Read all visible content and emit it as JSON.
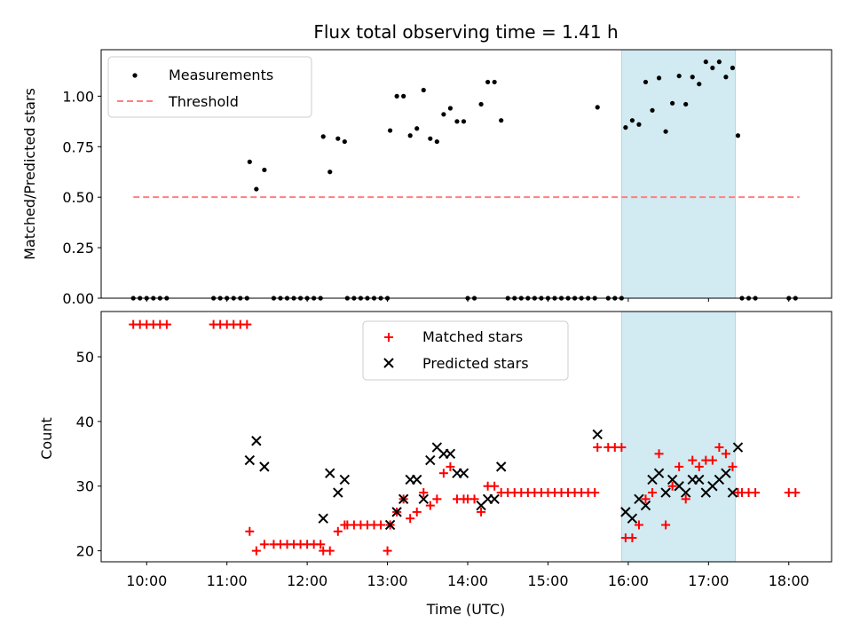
{
  "chart_data": [
    {
      "type": "scatter",
      "title": "Flux total observing time = 1.41 h",
      "xlabel": "",
      "ylabel": "Matched/Predicted stars",
      "ylim": [
        0,
        1.23
      ],
      "yticks": [
        "0.00",
        "0.25",
        "0.50",
        "0.75",
        "1.00"
      ],
      "legend": {
        "placement": "top-left",
        "entries": [
          "Measurements",
          "Threshold"
        ]
      },
      "highlight_span": {
        "start": "15:55",
        "end": "17:20",
        "color": "#add8e6"
      },
      "threshold": {
        "name": "Threshold",
        "value": 0.5,
        "x_start": "09:50",
        "x_end": "18:08",
        "color": "#ff7f7f"
      },
      "series": [
        {
          "name": "Measurements",
          "points": [
            [
              "09:50",
              0
            ],
            [
              "09:55",
              0
            ],
            [
              "10:00",
              0
            ],
            [
              "10:05",
              0
            ],
            [
              "10:10",
              0
            ],
            [
              "10:15",
              0
            ],
            [
              "10:50",
              0
            ],
            [
              "10:55",
              0
            ],
            [
              "11:00",
              0
            ],
            [
              "11:05",
              0
            ],
            [
              "11:10",
              0
            ],
            [
              "11:15",
              0
            ],
            [
              "11:17",
              0.675
            ],
            [
              "11:22",
              0.54
            ],
            [
              "11:28",
              0.635
            ],
            [
              "11:35",
              0
            ],
            [
              "11:40",
              0
            ],
            [
              "11:45",
              0
            ],
            [
              "11:50",
              0
            ],
            [
              "11:55",
              0
            ],
            [
              "12:00",
              0
            ],
            [
              "12:05",
              0
            ],
            [
              "12:10",
              0
            ],
            [
              "12:12",
              0.8
            ],
            [
              "12:17",
              0.625
            ],
            [
              "12:23",
              0.79
            ],
            [
              "12:28",
              0.775
            ],
            [
              "12:30",
              0
            ],
            [
              "12:35",
              0
            ],
            [
              "12:40",
              0
            ],
            [
              "12:45",
              0
            ],
            [
              "12:50",
              0
            ],
            [
              "12:55",
              0
            ],
            [
              "13:00",
              0
            ],
            [
              "13:02",
              0.83
            ],
            [
              "13:07",
              1.0
            ],
            [
              "13:12",
              1.0
            ],
            [
              "13:17",
              0.805
            ],
            [
              "13:22",
              0.84
            ],
            [
              "13:27",
              1.03
            ],
            [
              "13:32",
              0.79
            ],
            [
              "13:37",
              0.775
            ],
            [
              "13:42",
              0.91
            ],
            [
              "13:47",
              0.94
            ],
            [
              "13:52",
              0.875
            ],
            [
              "13:57",
              0.875
            ],
            [
              "14:00",
              0
            ],
            [
              "14:05",
              0
            ],
            [
              "14:10",
              0.96
            ],
            [
              "14:15",
              1.07
            ],
            [
              "14:20",
              1.07
            ],
            [
              "14:25",
              0.88
            ],
            [
              "14:30",
              0
            ],
            [
              "14:35",
              0
            ],
            [
              "14:40",
              0
            ],
            [
              "14:45",
              0
            ],
            [
              "14:50",
              0
            ],
            [
              "14:55",
              0
            ],
            [
              "15:00",
              0
            ],
            [
              "15:05",
              0
            ],
            [
              "15:10",
              0
            ],
            [
              "15:15",
              0
            ],
            [
              "15:20",
              0
            ],
            [
              "15:25",
              0
            ],
            [
              "15:30",
              0
            ],
            [
              "15:35",
              0
            ],
            [
              "15:37",
              0.945
            ],
            [
              "15:45",
              0
            ],
            [
              "15:50",
              0
            ],
            [
              "15:55",
              0
            ],
            [
              "15:58",
              0.845
            ],
            [
              "16:03",
              0.88
            ],
            [
              "16:08",
              0.86
            ],
            [
              "16:13",
              1.07
            ],
            [
              "16:18",
              0.93
            ],
            [
              "16:23",
              1.09
            ],
            [
              "16:28",
              0.825
            ],
            [
              "16:33",
              0.965
            ],
            [
              "16:38",
              1.1
            ],
            [
              "16:43",
              0.96
            ],
            [
              "16:48",
              1.095
            ],
            [
              "16:53",
              1.06
            ],
            [
              "16:58",
              1.17
            ],
            [
              "17:03",
              1.14
            ],
            [
              "17:08",
              1.17
            ],
            [
              "17:13",
              1.095
            ],
            [
              "17:18",
              1.14
            ],
            [
              "17:22",
              0.805
            ],
            [
              "17:25",
              0
            ],
            [
              "17:30",
              0
            ],
            [
              "17:35",
              0
            ],
            [
              "18:00",
              0
            ],
            [
              "18:05",
              0
            ]
          ]
        }
      ]
    },
    {
      "type": "scatter",
      "title": "",
      "xlabel": "Time (UTC)",
      "ylabel": "Count",
      "ylim": [
        18.3,
        57
      ],
      "yticks": [
        "20",
        "30",
        "40",
        "50"
      ],
      "xticks": [
        "10:00",
        "11:00",
        "12:00",
        "13:00",
        "14:00",
        "15:00",
        "16:00",
        "17:00",
        "18:00"
      ],
      "xlim": [
        "09:26",
        "18:32"
      ],
      "legend": {
        "placement": "top-center",
        "entries": [
          "Matched stars",
          "Predicted stars"
        ]
      },
      "highlight_span": {
        "start": "15:55",
        "end": "17:20",
        "color": "#add8e6"
      },
      "series": [
        {
          "name": "Matched stars",
          "marker": "plus",
          "color": "#ff0000",
          "points": [
            [
              "09:50",
              55
            ],
            [
              "09:55",
              55
            ],
            [
              "10:00",
              55
            ],
            [
              "10:05",
              55
            ],
            [
              "10:10",
              55
            ],
            [
              "10:15",
              55
            ],
            [
              "10:50",
              55
            ],
            [
              "10:55",
              55
            ],
            [
              "11:00",
              55
            ],
            [
              "11:05",
              55
            ],
            [
              "11:10",
              55
            ],
            [
              "11:15",
              55
            ],
            [
              "11:17",
              23
            ],
            [
              "11:22",
              20
            ],
            [
              "11:28",
              21
            ],
            [
              "11:35",
              21
            ],
            [
              "11:40",
              21
            ],
            [
              "11:45",
              21
            ],
            [
              "11:50",
              21
            ],
            [
              "11:55",
              21
            ],
            [
              "12:00",
              21
            ],
            [
              "12:05",
              21
            ],
            [
              "12:10",
              21
            ],
            [
              "12:12",
              20
            ],
            [
              "12:17",
              20
            ],
            [
              "12:23",
              23
            ],
            [
              "12:28",
              24
            ],
            [
              "12:30",
              24
            ],
            [
              "12:35",
              24
            ],
            [
              "12:40",
              24
            ],
            [
              "12:45",
              24
            ],
            [
              "12:50",
              24
            ],
            [
              "12:55",
              24
            ],
            [
              "13:00",
              20
            ],
            [
              "13:02",
              24
            ],
            [
              "13:07",
              26
            ],
            [
              "13:12",
              28
            ],
            [
              "13:17",
              25
            ],
            [
              "13:22",
              26
            ],
            [
              "13:27",
              29
            ],
            [
              "13:32",
              27
            ],
            [
              "13:37",
              28
            ],
            [
              "13:42",
              32
            ],
            [
              "13:47",
              33
            ],
            [
              "13:52",
              28
            ],
            [
              "13:57",
              28
            ],
            [
              "14:00",
              28
            ],
            [
              "14:05",
              28
            ],
            [
              "14:10",
              26
            ],
            [
              "14:15",
              30
            ],
            [
              "14:20",
              30
            ],
            [
              "14:25",
              29
            ],
            [
              "14:30",
              29
            ],
            [
              "14:35",
              29
            ],
            [
              "14:40",
              29
            ],
            [
              "14:45",
              29
            ],
            [
              "14:50",
              29
            ],
            [
              "14:55",
              29
            ],
            [
              "15:00",
              29
            ],
            [
              "15:05",
              29
            ],
            [
              "15:10",
              29
            ],
            [
              "15:15",
              29
            ],
            [
              "15:20",
              29
            ],
            [
              "15:25",
              29
            ],
            [
              "15:30",
              29
            ],
            [
              "15:35",
              29
            ],
            [
              "15:37",
              36
            ],
            [
              "15:45",
              36
            ],
            [
              "15:50",
              36
            ],
            [
              "15:55",
              36
            ],
            [
              "15:58",
              22
            ],
            [
              "16:03",
              22
            ],
            [
              "16:08",
              24
            ],
            [
              "16:13",
              28
            ],
            [
              "16:18",
              29
            ],
            [
              "16:23",
              35
            ],
            [
              "16:28",
              24
            ],
            [
              "16:33",
              30
            ],
            [
              "16:38",
              33
            ],
            [
              "16:43",
              28
            ],
            [
              "16:48",
              34
            ],
            [
              "16:53",
              33
            ],
            [
              "16:58",
              34
            ],
            [
              "17:03",
              34
            ],
            [
              "17:08",
              36
            ],
            [
              "17:13",
              35
            ],
            [
              "17:18",
              33
            ],
            [
              "17:22",
              29
            ],
            [
              "17:25",
              29
            ],
            [
              "17:30",
              29
            ],
            [
              "17:35",
              29
            ],
            [
              "18:00",
              29
            ],
            [
              "18:05",
              29
            ]
          ]
        },
        {
          "name": "Predicted stars",
          "marker": "x",
          "color": "#000000",
          "points": [
            [
              "11:17",
              34
            ],
            [
              "11:22",
              37
            ],
            [
              "11:28",
              33
            ],
            [
              "12:12",
              25
            ],
            [
              "12:17",
              32
            ],
            [
              "12:23",
              29
            ],
            [
              "12:28",
              31
            ],
            [
              "13:02",
              24
            ],
            [
              "13:07",
              26
            ],
            [
              "13:12",
              28
            ],
            [
              "13:17",
              31
            ],
            [
              "13:22",
              31
            ],
            [
              "13:27",
              28
            ],
            [
              "13:32",
              34
            ],
            [
              "13:37",
              36
            ],
            [
              "13:42",
              35
            ],
            [
              "13:47",
              35
            ],
            [
              "13:52",
              32
            ],
            [
              "13:57",
              32
            ],
            [
              "14:10",
              27
            ],
            [
              "14:15",
              28
            ],
            [
              "14:20",
              28
            ],
            [
              "14:25",
              33
            ],
            [
              "15:37",
              38
            ],
            [
              "15:58",
              26
            ],
            [
              "16:03",
              25
            ],
            [
              "16:08",
              28
            ],
            [
              "16:13",
              27
            ],
            [
              "16:18",
              31
            ],
            [
              "16:23",
              32
            ],
            [
              "16:28",
              29
            ],
            [
              "16:33",
              31
            ],
            [
              "16:38",
              30
            ],
            [
              "16:43",
              29
            ],
            [
              "16:48",
              31
            ],
            [
              "16:53",
              31
            ],
            [
              "16:58",
              29
            ],
            [
              "17:03",
              30
            ],
            [
              "17:08",
              31
            ],
            [
              "17:13",
              32
            ],
            [
              "17:18",
              29
            ],
            [
              "17:22",
              36
            ]
          ]
        }
      ]
    }
  ]
}
